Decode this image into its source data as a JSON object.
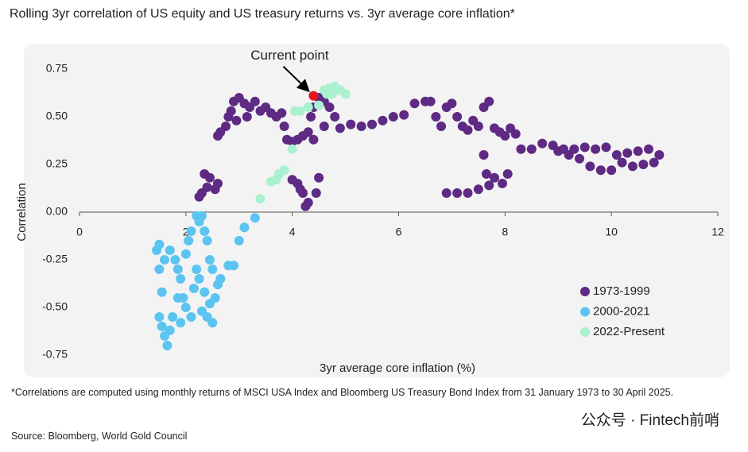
{
  "chart_data": {
    "type": "scatter",
    "title": "Rolling 3yr correlation of US equity and US treasury returns vs. 3yr average core inflation*",
    "xlabel": "3yr average core inflation (%)",
    "ylabel": "Correlation",
    "xlim": [
      0,
      12
    ],
    "xticks": [
      0,
      2,
      4,
      6,
      8,
      10,
      12
    ],
    "ylim": [
      -0.75,
      0.75
    ],
    "yticks": [
      0.75,
      {
        "value": 0.5,
        "label": "0.50"
      },
      0.25,
      {
        "value": 0,
        "label": "0.00"
      },
      -0.25,
      {
        "value": -0.5,
        "label": "-0.50"
      },
      -0.75
    ],
    "legend": "lower right",
    "series": [
      {
        "name": "1973-1999",
        "color": "#5e2a84",
        "x": [
          2.3,
          2.25,
          2.35,
          2.45,
          2.6,
          2.55,
          2.4,
          2.6,
          2.65,
          2.75,
          2.8,
          2.85,
          2.9,
          3.0,
          3.1,
          3.2,
          3.3,
          3.4,
          3.5,
          3.6,
          3.7,
          3.8,
          3.15,
          2.95,
          3.85,
          3.9,
          4.0,
          4.1,
          4.2,
          4.3,
          4.35,
          4.4,
          4.5,
          4.6,
          4.7,
          4.8,
          4.6,
          4.4,
          4.0,
          4.1,
          4.2,
          4.3,
          4.25,
          4.45,
          4.5,
          4.15,
          4.9,
          5.1,
          5.3,
          5.5,
          5.7,
          5.9,
          6.1,
          6.3,
          6.5,
          6.6,
          6.7,
          6.8,
          6.9,
          7.0,
          7.1,
          7.2,
          7.3,
          7.4,
          7.5,
          7.6,
          7.7,
          7.8,
          7.9,
          8.0,
          8.1,
          8.2,
          8.3,
          8.5,
          8.7,
          8.9,
          9.1,
          9.3,
          9.5,
          9.7,
          9.9,
          10.1,
          10.3,
          10.5,
          10.7,
          10.9,
          10.8,
          10.6,
          10.4,
          10.2,
          10.0,
          9.8,
          9.6,
          9.4,
          9.2,
          9.0,
          7.6,
          7.65,
          7.8,
          7.95,
          8.05,
          7.5,
          7.3,
          7.1,
          6.9,
          7.7
        ],
        "values": [
          0.1,
          0.08,
          0.2,
          0.18,
          0.15,
          0.12,
          0.13,
          0.4,
          0.42,
          0.45,
          0.5,
          0.53,
          0.58,
          0.6,
          0.57,
          0.55,
          0.58,
          0.53,
          0.55,
          0.52,
          0.5,
          0.52,
          0.5,
          0.48,
          0.45,
          0.38,
          0.37,
          0.38,
          0.4,
          0.42,
          0.5,
          0.55,
          0.6,
          0.58,
          0.55,
          0.5,
          0.45,
          0.38,
          0.17,
          0.15,
          0.1,
          0.05,
          0.03,
          0.1,
          0.18,
          0.12,
          0.44,
          0.46,
          0.45,
          0.46,
          0.48,
          0.5,
          0.51,
          0.57,
          0.58,
          0.58,
          0.5,
          0.45,
          0.55,
          0.57,
          0.5,
          0.45,
          0.43,
          0.48,
          0.45,
          0.55,
          0.58,
          0.44,
          0.42,
          0.4,
          0.44,
          0.41,
          0.33,
          0.33,
          0.36,
          0.35,
          0.33,
          0.33,
          0.34,
          0.33,
          0.34,
          0.3,
          0.31,
          0.32,
          0.33,
          0.3,
          0.26,
          0.25,
          0.24,
          0.26,
          0.22,
          0.22,
          0.24,
          0.28,
          0.3,
          0.32,
          0.3,
          0.2,
          0.18,
          0.15,
          0.2,
          0.12,
          0.1,
          0.1,
          0.1,
          0.14
        ]
      },
      {
        "name": "2000-2021",
        "color": "#5bc4f1",
        "x": [
          1.5,
          1.45,
          1.5,
          1.55,
          1.5,
          1.55,
          1.6,
          1.65,
          1.7,
          1.75,
          1.7,
          1.8,
          1.85,
          1.9,
          1.95,
          2.0,
          1.9,
          2.0,
          2.05,
          2.1,
          2.15,
          2.2,
          2.2,
          2.25,
          2.3,
          2.35,
          2.4,
          2.45,
          2.5,
          2.45,
          2.5,
          2.55,
          2.4,
          2.3,
          2.6,
          2.65,
          2.8,
          2.9,
          3.0,
          3.1,
          3.3,
          2.1,
          1.85,
          1.6,
          2.25,
          2.35
        ],
        "values": [
          -0.3,
          -0.2,
          -0.17,
          -0.42,
          -0.55,
          -0.6,
          -0.65,
          -0.7,
          -0.62,
          -0.55,
          -0.2,
          -0.25,
          -0.3,
          -0.35,
          -0.45,
          -0.5,
          -0.58,
          -0.22,
          -0.15,
          -0.1,
          -0.4,
          -0.3,
          -0.02,
          -0.05,
          -0.02,
          -0.1,
          -0.15,
          -0.25,
          -0.3,
          -0.48,
          -0.58,
          -0.45,
          -0.55,
          -0.52,
          -0.38,
          -0.35,
          -0.28,
          -0.28,
          -0.15,
          -0.08,
          -0.03,
          -0.55,
          -0.45,
          -0.25,
          -0.35,
          -0.42
        ]
      },
      {
        "name": "2022-Present",
        "color": "#a9f1cf",
        "x": [
          3.4,
          3.6,
          3.7,
          3.75,
          3.85,
          4.0,
          4.05,
          4.15,
          4.3,
          4.5,
          4.6,
          4.7,
          4.8,
          4.9,
          5.0,
          4.75,
          4.65
        ],
        "values": [
          0.07,
          0.16,
          0.17,
          0.2,
          0.22,
          0.33,
          0.53,
          0.53,
          0.55,
          0.56,
          0.64,
          0.65,
          0.66,
          0.64,
          0.62,
          0.62,
          0.62
        ]
      }
    ],
    "current_point": {
      "label": "Current point",
      "x": 4.4,
      "y": 0.61,
      "color": "#e8141c"
    },
    "footnote": "*Correlations are computed using monthly returns of MSCI USA Index and Bloomberg US Treasury Bond Index from 31 January 1973 to 30 April 2025.",
    "source": "Source: Bloomberg, World Gold Council",
    "watermark": "公众号 · Fintech前哨"
  }
}
